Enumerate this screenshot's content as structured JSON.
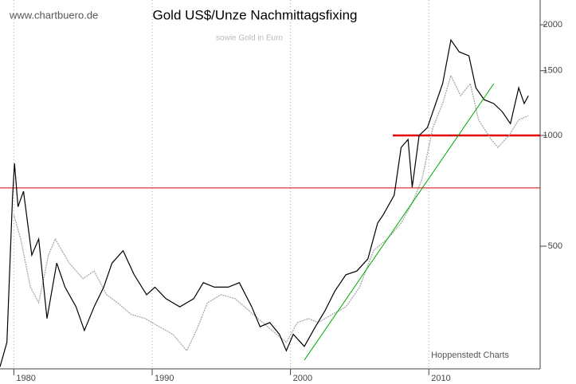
{
  "chart_data": {
    "type": "line",
    "title": "Gold US$/Unze Nachmittagsfixing",
    "subtitle": "sowie Gold in Euro",
    "source": "www.chartbuero.de",
    "credit": "Hoppenstedt Charts",
    "log_scale": true,
    "grid": true,
    "xlim": [
      1979,
      2018.05
    ],
    "ylim": [
      232,
      2335
    ],
    "xticks": [
      1980,
      1990,
      2000,
      2010
    ],
    "yticks": [
      500,
      1000,
      1500,
      2000
    ],
    "series": [
      {
        "color": "#000000",
        "x": [
          1979.0,
          1979.5,
          1979.9,
          1980.05,
          1980.3,
          1980.7,
          1981.3,
          1981.8,
          1982.4,
          1983.1,
          1983.7,
          1984.5,
          1985.1,
          1985.8,
          1986.5,
          1987.1,
          1987.9,
          1988.7,
          1989.6,
          1990.2,
          1991.0,
          1992.0,
          1993.0,
          1993.7,
          1994.5,
          1995.5,
          1996.3,
          1997.2,
          1997.8,
          1998.5,
          1999.2,
          1999.7,
          2000.2,
          2001.0,
          2001.8,
          2002.5,
          2003.2,
          2004.0,
          2004.8,
          2005.6,
          2006.3,
          2006.7,
          2007.5,
          2008.0,
          2008.5,
          2008.8,
          2009.3,
          2009.9,
          2010.5,
          2011.0,
          2011.6,
          2012.2,
          2012.9,
          2013.4,
          2014.0,
          2014.7,
          2015.3,
          2015.9,
          2016.5,
          2016.9,
          2017.2
        ],
        "values": [
          235,
          274,
          672,
          840,
          640,
          705,
          473,
          523,
          318,
          450,
          387,
          342,
          295,
          342,
          387,
          450,
          486,
          418,
          369,
          387,
          360,
          342,
          360,
          398,
          387,
          387,
          398,
          342,
          302,
          310,
          288,
          260,
          288,
          267,
          302,
          334,
          377,
          418,
          428,
          462,
          578,
          608,
          688,
          928,
          975,
          723,
          1000,
          1051,
          1221,
          1383,
          1818,
          1688,
          1646,
          1348,
          1251,
          1221,
          1161,
          1077,
          1348,
          1221,
          1283
        ]
      },
      {
        "color": "#a8a8a8",
        "x": [
          1980.0,
          1980.5,
          1981.2,
          1981.8,
          1982.5,
          1983.0,
          1984.0,
          1985.0,
          1985.8,
          1986.7,
          1987.5,
          1988.5,
          1989.5,
          1990.5,
          1991.5,
          1992.5,
          1993.2,
          1994.0,
          1995.0,
          1996.0,
          1997.0,
          1998.0,
          1999.0,
          1999.7,
          2000.5,
          2001.3,
          2002.0,
          2003.0,
          2004.0,
          2005.0,
          2006.0,
          2007.0,
          2008.0,
          2008.8,
          2009.5,
          2010.3,
          2011.0,
          2011.6,
          2012.3,
          2013.0,
          2013.6,
          2014.5,
          2015.0,
          2015.8,
          2016.5,
          2017.2
        ],
        "values": [
          608,
          523,
          387,
          351,
          473,
          523,
          450,
          408,
          428,
          369,
          351,
          326,
          318,
          302,
          288,
          260,
          295,
          351,
          369,
          360,
          334,
          310,
          288,
          274,
          310,
          318,
          310,
          326,
          342,
          387,
          486,
          523,
          578,
          655,
          760,
          1051,
          1221,
          1455,
          1283,
          1383,
          1103,
          975,
          928,
          1000,
          1103,
          1131
        ]
      }
    ],
    "reference_lines": [
      {
        "value": 720,
        "color": "#e00000"
      },
      {
        "value": 1000,
        "color": "#e00000",
        "x_from": 2007.4
      }
    ],
    "trend_line": {
      "x": [
        2001.0,
        2014.7
      ],
      "values": [
        245,
        1383
      ],
      "color": "#00aa00"
    }
  }
}
